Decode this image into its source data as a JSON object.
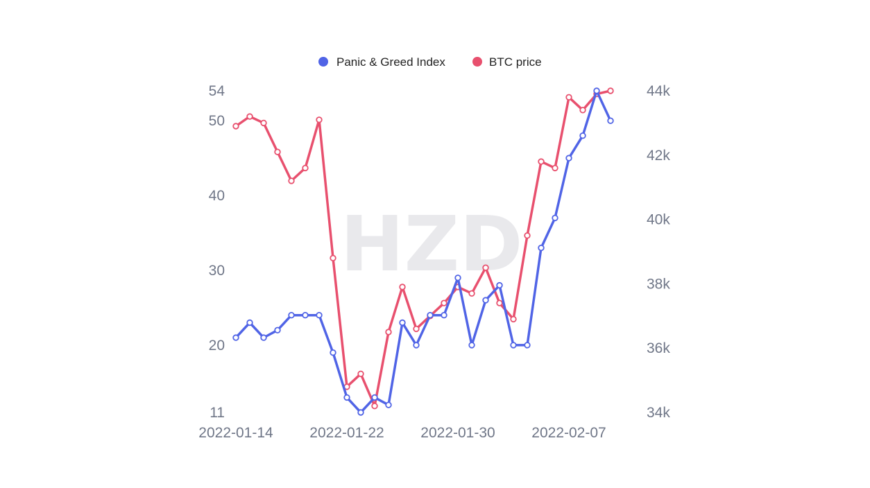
{
  "chart_data": {
    "type": "line",
    "watermark": "HZD",
    "legend": {
      "position": "top-center"
    },
    "x": [
      "2022-01-14",
      "2022-01-15",
      "2022-01-16",
      "2022-01-17",
      "2022-01-18",
      "2022-01-19",
      "2022-01-20",
      "2022-01-21",
      "2022-01-22",
      "2022-01-23",
      "2022-01-24",
      "2022-01-25",
      "2022-01-26",
      "2022-01-27",
      "2022-01-28",
      "2022-01-29",
      "2022-01-30",
      "2022-01-31",
      "2022-02-01",
      "2022-02-02",
      "2022-02-03",
      "2022-02-04",
      "2022-02-05",
      "2022-02-06",
      "2022-02-07",
      "2022-02-08",
      "2022-02-09",
      "2022-02-10"
    ],
    "x_tick_labels": [
      "2022-01-14",
      "2022-01-22",
      "2022-01-30",
      "2022-02-07"
    ],
    "y_left": {
      "ticks": [
        "54",
        "50",
        "40",
        "30",
        "20",
        "11"
      ],
      "range": [
        11,
        54
      ]
    },
    "y_right": {
      "ticks": [
        "44k",
        "42k",
        "40k",
        "38k",
        "36k",
        "34k"
      ],
      "range": [
        34000,
        44000
      ]
    },
    "grid": false,
    "series": [
      {
        "name": "Panic & Greed Index",
        "axis": "left",
        "color": "#5064e6",
        "values": [
          21,
          23,
          21,
          22,
          24,
          24,
          24,
          19,
          13,
          11,
          13,
          12,
          23,
          20,
          24,
          24,
          29,
          20,
          26,
          28,
          20,
          20,
          33,
          37,
          45,
          48,
          54,
          50
        ]
      },
      {
        "name": "BTC price",
        "axis": "right",
        "color": "#e8506e",
        "values": [
          42900,
          43200,
          43000,
          42100,
          41200,
          41600,
          43100,
          38800,
          34800,
          35200,
          34200,
          36500,
          37900,
          36600,
          37000,
          37400,
          37900,
          37700,
          38500,
          37400,
          36900,
          39500,
          41800,
          41600,
          43800,
          43400,
          43900,
          44000
        ]
      }
    ]
  }
}
